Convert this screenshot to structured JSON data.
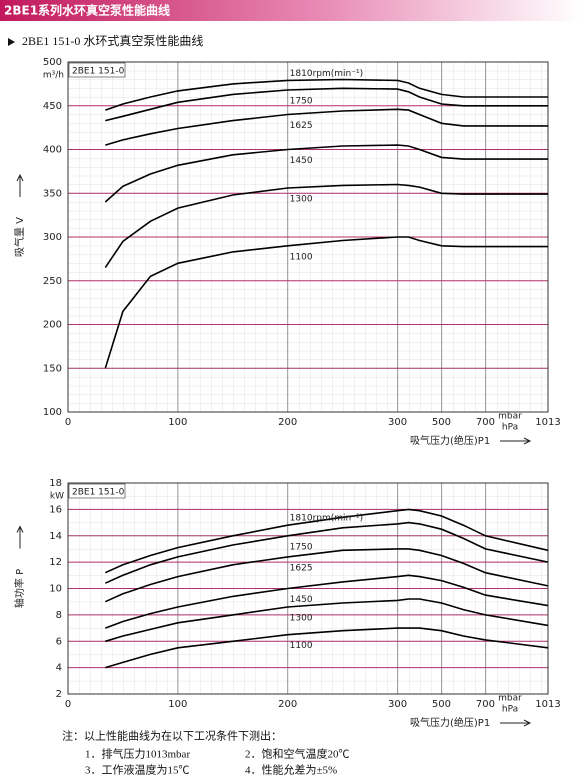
{
  "header": {
    "title": "2BE1系列水环真空泵性能曲线"
  },
  "subtitle": "2BE1 151-0 水环式真空泵性能曲线",
  "chart_data": [
    {
      "type": "line",
      "model_label": "2BE1 151-0",
      "y_label": "吸气量 V",
      "y_unit": "m³/h",
      "x_label": "吸气压力(绝压)P1",
      "x_unit": "mbar",
      "x_unit2": "hPa",
      "x_scale": "segmented",
      "grid": true,
      "x": [
        34,
        50,
        75,
        100,
        150,
        200,
        250,
        300,
        350,
        400,
        500,
        600,
        700,
        1013
      ],
      "xlim": [
        0,
        1013
      ],
      "xticks": [
        0,
        100,
        200,
        300,
        500,
        700,
        1013
      ],
      "ylim": [
        100,
        500
      ],
      "yticks": [
        100,
        150,
        200,
        250,
        300,
        350,
        400,
        450,
        500
      ],
      "series": [
        {
          "name": "1810rpm(min⁻¹)",
          "color": "#000000",
          "values": [
            445,
            452,
            460,
            467,
            475,
            479,
            480,
            479,
            476,
            470,
            463,
            460,
            460,
            460
          ]
        },
        {
          "name": "1750",
          "color": "#000000",
          "values": [
            433,
            438,
            446,
            454,
            463,
            468,
            470,
            469,
            466,
            460,
            452,
            450,
            450,
            450
          ]
        },
        {
          "name": "1625",
          "color": "#000000",
          "values": [
            405,
            411,
            418,
            424,
            433,
            440,
            444,
            446,
            445,
            440,
            430,
            427,
            427,
            427
          ]
        },
        {
          "name": "1450",
          "color": "#000000",
          "values": [
            340,
            358,
            372,
            382,
            394,
            400,
            404,
            405,
            404,
            400,
            391,
            389,
            389,
            389
          ]
        },
        {
          "name": "1300",
          "color": "#000000",
          "values": [
            265,
            295,
            318,
            333,
            348,
            356,
            359,
            360,
            359,
            357,
            350,
            349,
            349,
            349
          ]
        },
        {
          "name": "1100",
          "color": "#000000",
          "values": [
            150,
            215,
            255,
            270,
            283,
            290,
            296,
            300,
            300,
            296,
            290,
            289,
            289,
            289
          ]
        }
      ]
    },
    {
      "type": "line",
      "model_label": "2BE1 151-0",
      "y_label": "轴功率 P",
      "y_unit": "kW",
      "x_label": "吸气压力(绝压)P1",
      "x_unit": "mbar",
      "x_unit2": "hPa",
      "x_scale": "segmented",
      "grid": true,
      "x": [
        34,
        50,
        75,
        100,
        150,
        200,
        250,
        300,
        350,
        400,
        500,
        600,
        700,
        1013
      ],
      "xlim": [
        0,
        1013
      ],
      "xticks": [
        0,
        100,
        200,
        300,
        500,
        700,
        1013
      ],
      "ylim": [
        2,
        18
      ],
      "yticks": [
        2,
        4,
        6,
        8,
        10,
        12,
        14,
        16,
        18
      ],
      "series": [
        {
          "name": "1810rpm(min⁻¹)",
          "color": "#000000",
          "values": [
            11.2,
            11.8,
            12.5,
            13.1,
            14.0,
            14.8,
            15.4,
            15.9,
            16.0,
            15.9,
            15.5,
            14.8,
            14.0,
            12.9
          ]
        },
        {
          "name": "1750",
          "color": "#000000",
          "values": [
            10.4,
            11.0,
            11.8,
            12.4,
            13.3,
            14.0,
            14.6,
            14.9,
            15.0,
            14.9,
            14.5,
            13.8,
            13.0,
            12.0
          ]
        },
        {
          "name": "1625",
          "color": "#000000",
          "values": [
            9.0,
            9.6,
            10.3,
            10.9,
            11.8,
            12.4,
            12.9,
            13.0,
            13.0,
            12.9,
            12.5,
            11.9,
            11.2,
            10.2
          ]
        },
        {
          "name": "1450",
          "color": "#000000",
          "values": [
            7.0,
            7.5,
            8.1,
            8.6,
            9.4,
            10.0,
            10.5,
            10.9,
            11.0,
            10.9,
            10.6,
            10.1,
            9.5,
            8.7
          ]
        },
        {
          "name": "1300",
          "color": "#000000",
          "values": [
            6.0,
            6.4,
            6.9,
            7.4,
            8.0,
            8.6,
            8.9,
            9.1,
            9.2,
            9.2,
            8.9,
            8.4,
            8.0,
            7.2
          ]
        },
        {
          "name": "1100",
          "color": "#000000",
          "values": [
            4.0,
            4.4,
            5.0,
            5.5,
            6.0,
            6.5,
            6.8,
            7.0,
            7.0,
            7.0,
            6.8,
            6.4,
            6.1,
            5.5
          ]
        }
      ]
    }
  ],
  "notes": {
    "intro": "注：以上性能曲线为在以下工况条件下测出：",
    "items": [
      "1．排气压力1013mbar",
      "2．饱和空气温度20℃",
      "3．工作液温度为15℃",
      "4．性能允差为±5%"
    ]
  }
}
